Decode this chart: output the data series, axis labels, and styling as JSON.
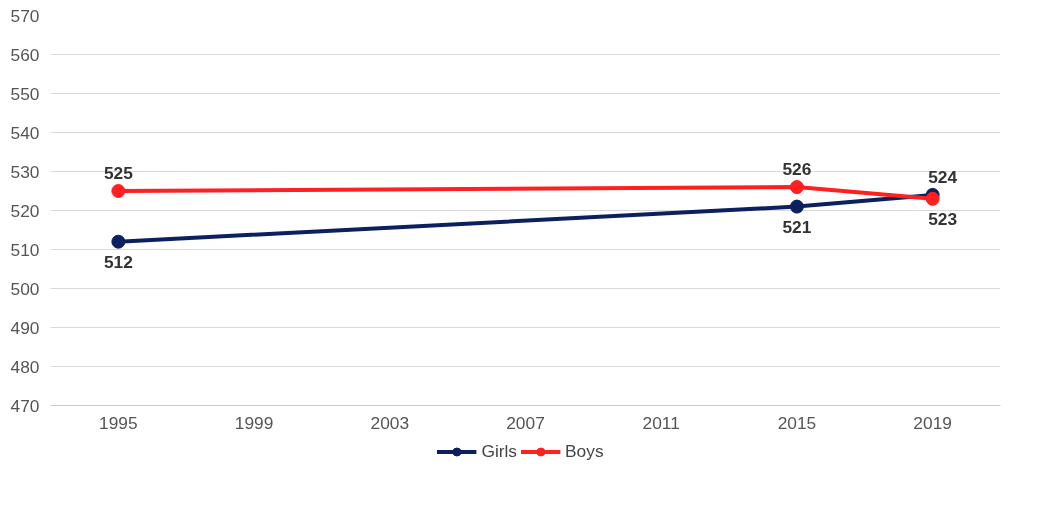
{
  "chart_data": {
    "type": "line",
    "x": [
      1995,
      2015,
      2019
    ],
    "series": [
      {
        "name": "Girls",
        "color": "#0c1f5e",
        "values": [
          512,
          521,
          524
        ]
      },
      {
        "name": "Boys",
        "color": "#ff2020",
        "values": [
          525,
          526,
          523
        ]
      }
    ],
    "xlim": [
      1993,
      2021
    ],
    "xticks": [
      1995,
      1999,
      2003,
      2007,
      2011,
      2015,
      2019
    ],
    "ylim": [
      470,
      570
    ],
    "yticks": [
      470,
      480,
      490,
      500,
      510,
      520,
      530,
      540,
      550,
      560,
      570
    ],
    "grid": "y",
    "legend": "bottom",
    "marker": "circle",
    "line_style": "solid",
    "data_labels": true
  }
}
